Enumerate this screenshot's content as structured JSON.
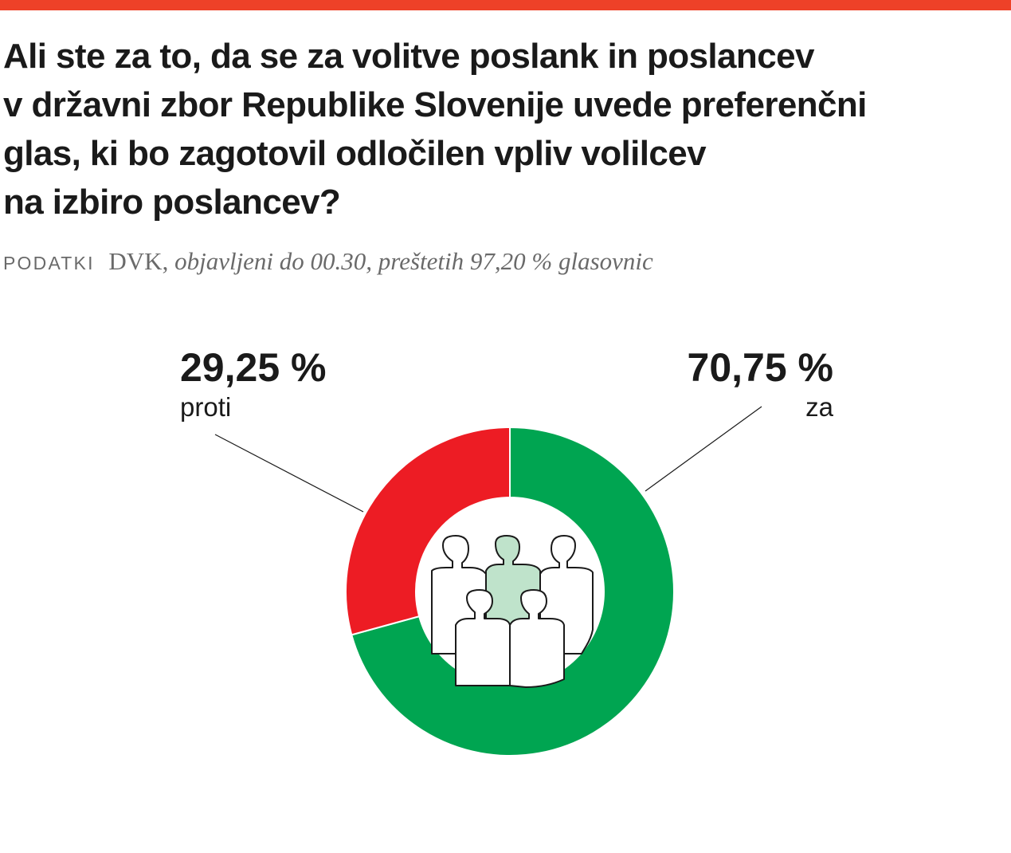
{
  "header": {
    "title_lines": [
      "Ali ste za to, da se za volitve poslank in poslancev",
      "v državni zbor Republike Slovenije uvede preferenčni",
      "glas, ki bo zagotovil odločilen vpliv volilcev",
      "na izbiro poslancev?"
    ],
    "source_label": "PODATKI",
    "source_org": "DVK,",
    "source_note": "objavljeni do 00.30, preštetih 97,20 % glasovnic"
  },
  "colors": {
    "top_bar": "#ee4128",
    "za": "#00a551",
    "proti": "#ed1c24",
    "icon_highlight": "#bfe3cb"
  },
  "icon": "people-group-icon",
  "chart_data": {
    "type": "pie",
    "donut": true,
    "title": "Ali ste za to, da se za volitve poslank in poslancev v državni zbor Republike Slovenije uvede preferenčni glas, ki bo zagotovil odločilen vpliv volilcev na izbiro poslancev?",
    "slices": [
      {
        "label": "za",
        "value": 70.75,
        "value_label": "70,75 %",
        "color": "#00a551"
      },
      {
        "label": "proti",
        "value": 29.25,
        "value_label": "29,25 %",
        "color": "#ed1c24"
      }
    ]
  }
}
